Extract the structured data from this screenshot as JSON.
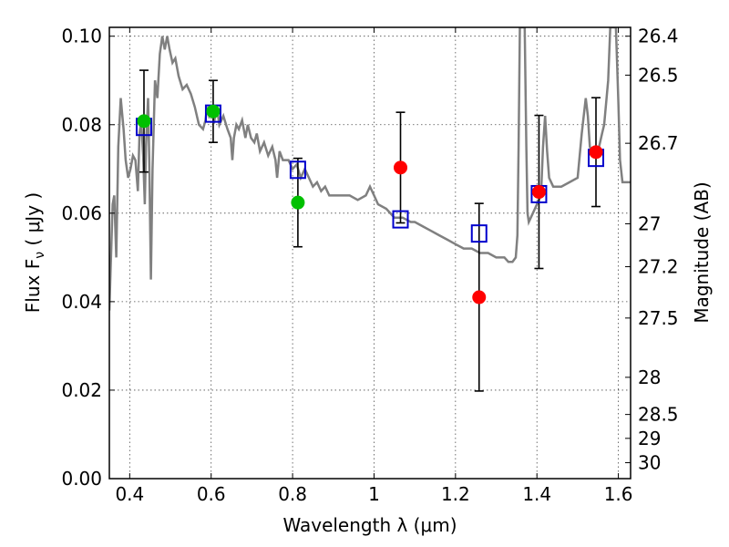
{
  "chart_data": {
    "type": "scatter",
    "xlabel": "Wavelength  λ (μm)",
    "ylabel": "Flux  F",
    "ylabel_sub": "ν",
    "ylabel_unit": "  ( μJy )",
    "y2label": "Magnitude (AB)",
    "xlim": [
      0.35,
      1.63
    ],
    "ylim": [
      0.0,
      0.102
    ],
    "grid": true,
    "x_ticks": [
      {
        "value": 0.4,
        "label": "0.4"
      },
      {
        "value": 0.6,
        "label": "0.6"
      },
      {
        "value": 0.8,
        "label": "0.8"
      },
      {
        "value": 1.0,
        "label": "1"
      },
      {
        "value": 1.2,
        "label": "1.2"
      },
      {
        "value": 1.4,
        "label": "1.4"
      },
      {
        "value": 1.6,
        "label": "1.6"
      }
    ],
    "y_ticks": [
      {
        "value": 0.0,
        "label": "0.00"
      },
      {
        "value": 0.02,
        "label": "0.02"
      },
      {
        "value": 0.04,
        "label": "0.04"
      },
      {
        "value": 0.06,
        "label": "0.06"
      },
      {
        "value": 0.08,
        "label": "0.08"
      },
      {
        "value": 0.1,
        "label": "0.10"
      }
    ],
    "y2_ticks": [
      {
        "flux": 0.1,
        "label": "26.4"
      },
      {
        "flux": 0.0912,
        "label": "26.5"
      },
      {
        "flux": 0.0758,
        "label": "26.7"
      },
      {
        "flux": 0.0576,
        "label": "27"
      },
      {
        "flux": 0.0479,
        "label": "27.2"
      },
      {
        "flux": 0.0363,
        "label": "27.5"
      },
      {
        "flux": 0.0229,
        "label": "28"
      },
      {
        "flux": 0.0145,
        "label": "28.5"
      },
      {
        "flux": 0.0091,
        "label": "29"
      },
      {
        "flux": 0.0036,
        "label": "30"
      }
    ],
    "series": [
      {
        "kind": "model_spectrum",
        "color": "#808080",
        "points": [
          [
            0.35,
            0.038
          ],
          [
            0.358,
            0.062
          ],
          [
            0.362,
            0.064
          ],
          [
            0.367,
            0.05
          ],
          [
            0.372,
            0.075
          ],
          [
            0.378,
            0.086
          ],
          [
            0.385,
            0.079
          ],
          [
            0.39,
            0.072
          ],
          [
            0.396,
            0.068
          ],
          [
            0.402,
            0.07
          ],
          [
            0.408,
            0.073
          ],
          [
            0.414,
            0.072
          ],
          [
            0.42,
            0.065
          ],
          [
            0.424,
            0.078
          ],
          [
            0.428,
            0.081
          ],
          [
            0.433,
            0.073
          ],
          [
            0.437,
            0.062
          ],
          [
            0.44,
            0.075
          ],
          [
            0.445,
            0.086
          ],
          [
            0.448,
            0.072
          ],
          [
            0.452,
            0.045
          ],
          [
            0.456,
            0.07
          ],
          [
            0.462,
            0.09
          ],
          [
            0.468,
            0.086
          ],
          [
            0.474,
            0.096
          ],
          [
            0.48,
            0.1
          ],
          [
            0.486,
            0.097
          ],
          [
            0.492,
            0.1
          ],
          [
            0.498,
            0.097
          ],
          [
            0.505,
            0.094
          ],
          [
            0.512,
            0.095
          ],
          [
            0.52,
            0.091
          ],
          [
            0.53,
            0.088
          ],
          [
            0.54,
            0.089
          ],
          [
            0.55,
            0.087
          ],
          [
            0.56,
            0.084
          ],
          [
            0.57,
            0.08
          ],
          [
            0.58,
            0.079
          ],
          [
            0.586,
            0.081
          ],
          [
            0.59,
            0.084
          ],
          [
            0.595,
            0.082
          ],
          [
            0.6,
            0.083
          ],
          [
            0.608,
            0.081
          ],
          [
            0.614,
            0.084
          ],
          [
            0.62,
            0.08
          ],
          [
            0.63,
            0.082
          ],
          [
            0.64,
            0.079
          ],
          [
            0.648,
            0.077
          ],
          [
            0.652,
            0.072
          ],
          [
            0.656,
            0.077
          ],
          [
            0.662,
            0.08
          ],
          [
            0.668,
            0.079
          ],
          [
            0.676,
            0.081
          ],
          [
            0.684,
            0.077
          ],
          [
            0.69,
            0.08
          ],
          [
            0.698,
            0.077
          ],
          [
            0.706,
            0.076
          ],
          [
            0.712,
            0.078
          ],
          [
            0.72,
            0.074
          ],
          [
            0.73,
            0.076
          ],
          [
            0.74,
            0.073
          ],
          [
            0.75,
            0.075
          ],
          [
            0.758,
            0.072
          ],
          [
            0.762,
            0.068
          ],
          [
            0.768,
            0.074
          ],
          [
            0.776,
            0.072
          ],
          [
            0.79,
            0.072
          ],
          [
            0.8,
            0.07
          ],
          [
            0.81,
            0.071
          ],
          [
            0.82,
            0.068
          ],
          [
            0.83,
            0.07
          ],
          [
            0.84,
            0.068
          ],
          [
            0.85,
            0.066
          ],
          [
            0.86,
            0.067
          ],
          [
            0.87,
            0.065
          ],
          [
            0.88,
            0.066
          ],
          [
            0.89,
            0.064
          ],
          [
            0.9,
            0.064
          ],
          [
            0.91,
            0.064
          ],
          [
            0.92,
            0.064
          ],
          [
            0.94,
            0.064
          ],
          [
            0.96,
            0.063
          ],
          [
            0.98,
            0.064
          ],
          [
            0.99,
            0.066
          ],
          [
            1.0,
            0.064
          ],
          [
            1.01,
            0.062
          ],
          [
            1.03,
            0.061
          ],
          [
            1.05,
            0.059
          ],
          [
            1.07,
            0.059
          ],
          [
            1.09,
            0.058
          ],
          [
            1.1,
            0.058
          ],
          [
            1.12,
            0.057
          ],
          [
            1.14,
            0.056
          ],
          [
            1.16,
            0.055
          ],
          [
            1.18,
            0.054
          ],
          [
            1.2,
            0.053
          ],
          [
            1.22,
            0.052
          ],
          [
            1.24,
            0.052
          ],
          [
            1.26,
            0.051
          ],
          [
            1.28,
            0.051
          ],
          [
            1.3,
            0.05
          ],
          [
            1.32,
            0.05
          ],
          [
            1.33,
            0.049
          ],
          [
            1.34,
            0.049
          ],
          [
            1.348,
            0.05
          ],
          [
            1.352,
            0.055
          ],
          [
            1.355,
            0.075
          ],
          [
            1.358,
            0.102
          ],
          [
            1.37,
            0.102
          ],
          [
            1.374,
            0.075
          ],
          [
            1.377,
            0.06
          ],
          [
            1.38,
            0.058
          ],
          [
            1.39,
            0.06
          ],
          [
            1.4,
            0.062
          ],
          [
            1.41,
            0.064
          ],
          [
            1.415,
            0.075
          ],
          [
            1.42,
            0.082
          ],
          [
            1.425,
            0.074
          ],
          [
            1.43,
            0.068
          ],
          [
            1.44,
            0.066
          ],
          [
            1.46,
            0.066
          ],
          [
            1.48,
            0.067
          ],
          [
            1.5,
            0.068
          ],
          [
            1.51,
            0.078
          ],
          [
            1.52,
            0.086
          ],
          [
            1.525,
            0.082
          ],
          [
            1.53,
            0.075
          ],
          [
            1.54,
            0.073
          ],
          [
            1.55,
            0.074
          ],
          [
            1.56,
            0.078
          ],
          [
            1.565,
            0.08
          ],
          [
            1.57,
            0.085
          ],
          [
            1.575,
            0.09
          ],
          [
            1.58,
            0.102
          ],
          [
            1.594,
            0.102
          ],
          [
            1.6,
            0.085
          ],
          [
            1.604,
            0.072
          ],
          [
            1.61,
            0.067
          ],
          [
            1.63,
            0.067
          ]
        ]
      },
      {
        "kind": "model_photometry",
        "marker": "open-square",
        "color": "#0000cc",
        "x": [
          0.435,
          0.605,
          0.813,
          1.065,
          1.258,
          1.405,
          1.545
        ],
        "y": [
          0.0795,
          0.0825,
          0.0698,
          0.0586,
          0.0554,
          0.0643,
          0.0725
        ]
      },
      {
        "kind": "observed_optical",
        "marker": "filled-circle",
        "color": "#00c000",
        "x": [
          0.435,
          0.605,
          0.813
        ],
        "y": [
          0.0808,
          0.083,
          0.0624
        ],
        "yerr": [
          0.0115,
          0.007,
          0.01
        ]
      },
      {
        "kind": "observed_nir",
        "marker": "filled-circle",
        "color": "#ff0000",
        "x": [
          1.065,
          1.258,
          1.405,
          1.545
        ],
        "y": [
          0.0703,
          0.041,
          0.0648,
          0.0738
        ],
        "yerr": [
          0.0125,
          0.0212,
          0.0173,
          0.0123
        ]
      }
    ]
  }
}
